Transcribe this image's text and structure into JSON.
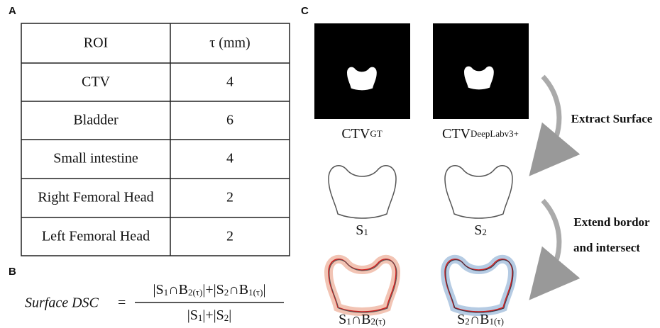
{
  "panels": {
    "a": "A",
    "b": "B",
    "c": "C"
  },
  "table": {
    "header": [
      "ROI",
      "τ (mm)"
    ],
    "rows": [
      [
        "CTV",
        4
      ],
      [
        "Bladder",
        6
      ],
      [
        "Small intestine",
        4
      ],
      [
        "Right Femoral Head",
        2
      ],
      [
        "Left Femoral Head",
        2
      ]
    ]
  },
  "formula": {
    "lhs": "Surface DSC",
    "equals": "=",
    "numerator": [
      "|S",
      "1",
      "∩B",
      "2(τ)",
      "|+|S",
      "2",
      "∩B",
      "1(τ)",
      "|"
    ],
    "denominator": [
      "|S",
      "1",
      "|+|S",
      "2",
      "|"
    ]
  },
  "diagram": {
    "captions": {
      "gt": [
        "CTV",
        "GT"
      ],
      "pred": [
        "CTV",
        "DeepLabv3+"
      ],
      "s1": [
        "S",
        "1"
      ],
      "s2": [
        "S",
        "2"
      ],
      "i1": [
        "S",
        "1",
        "∩B",
        "2(τ)"
      ],
      "i2": [
        "S",
        "2",
        "∩B",
        "1(τ)"
      ]
    },
    "steps": {
      "extract": "Extract Surface",
      "extend": [
        "Extend bordor",
        "and intersect"
      ]
    }
  }
}
